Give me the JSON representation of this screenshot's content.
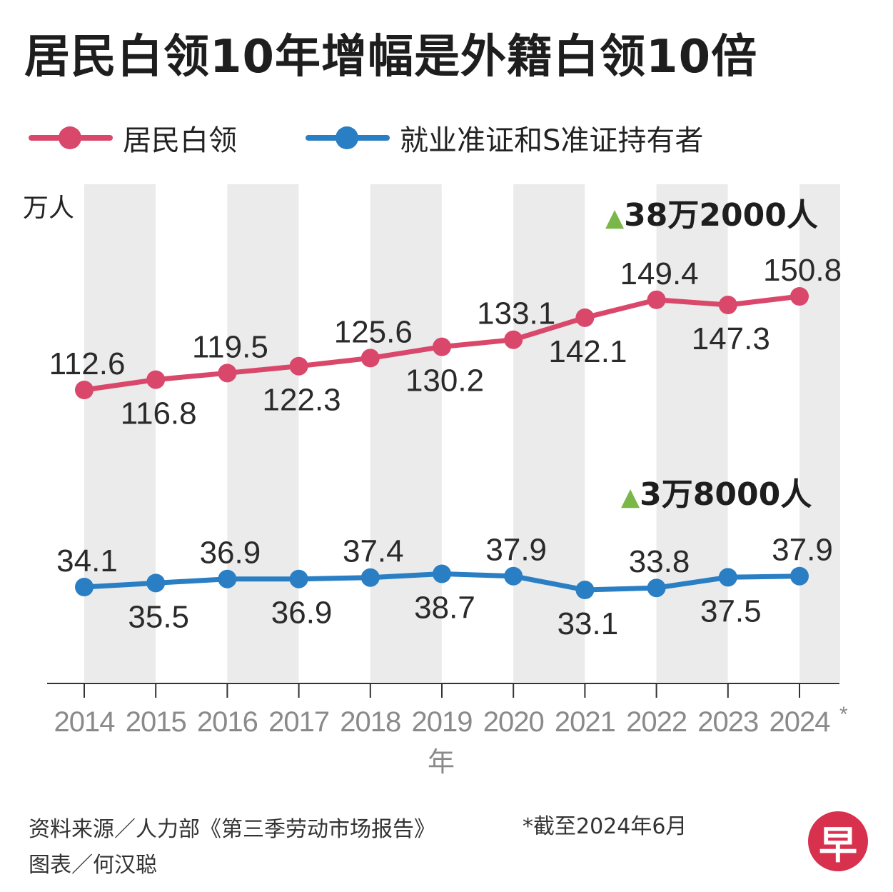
{
  "chart_data": {
    "type": "line",
    "title": "居民白领10年增幅是外籍白领10倍",
    "ylabel": "万人",
    "xlabel": "年",
    "categories": [
      "2014",
      "2015",
      "2016",
      "2017",
      "2018",
      "2019",
      "2020",
      "2021",
      "2022",
      "2023",
      "2024"
    ],
    "x_suffix_last": "*",
    "series": [
      {
        "name": "居民白领",
        "color": "#d9486a",
        "values": [
          112.6,
          116.8,
          119.5,
          122.3,
          125.6,
          130.2,
          133.1,
          142.1,
          149.4,
          147.3,
          150.8
        ],
        "value_labels": [
          "112.6",
          "116.8",
          "119.5",
          "122.3",
          "125.6",
          "130.2",
          "133.1",
          "142.1",
          "149.4",
          "147.3",
          "150.8"
        ],
        "change_annotation": "38万2000人"
      },
      {
        "name": "就业准证和S准证持有者",
        "color": "#2a7fc4",
        "values": [
          34.1,
          35.5,
          36.9,
          36.9,
          37.4,
          38.7,
          37.9,
          33.1,
          33.8,
          37.5,
          37.9
        ],
        "value_labels": [
          "34.1",
          "35.5",
          "36.9",
          "36.9",
          "37.4",
          "38.7",
          "37.9",
          "33.1",
          "33.8",
          "37.5",
          "37.9"
        ],
        "change_annotation": "3万8000人"
      }
    ],
    "grid": "alternating column bands",
    "legend_position": "top-left"
  },
  "annotation_marker": "▲",
  "annotation_color": "#7ab648",
  "band_color": "#ebebeb",
  "footer": {
    "source": "资料来源／人力部《第三季劳动市场报告》",
    "graphic": "图表／何汉聪",
    "note": "*截至2024年6月"
  },
  "logo": {
    "glyph": "早",
    "color": "#d8314d"
  }
}
